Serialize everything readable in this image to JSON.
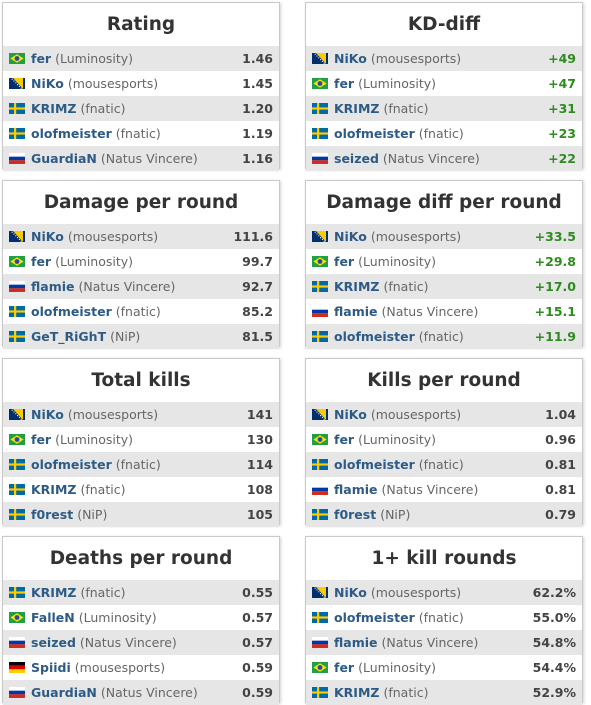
{
  "panels": [
    {
      "title": "Rating",
      "positive": false,
      "rows": [
        {
          "flag": "brazil",
          "player": "fer",
          "team": "(Luminosity)",
          "value": "1.46"
        },
        {
          "flag": "bosnia",
          "player": "NiKo",
          "team": "(mousesports)",
          "value": "1.45"
        },
        {
          "flag": "sweden",
          "player": "KRIMZ",
          "team": "(fnatic)",
          "value": "1.20"
        },
        {
          "flag": "sweden",
          "player": "olofmeister",
          "team": "(fnatic)",
          "value": "1.19"
        },
        {
          "flag": "russia",
          "player": "GuardiaN",
          "team": "(Natus Vincere)",
          "value": "1.16"
        }
      ]
    },
    {
      "title": "KD-diff",
      "positive": true,
      "rows": [
        {
          "flag": "bosnia",
          "player": "NiKo",
          "team": "(mousesports)",
          "value": "+49"
        },
        {
          "flag": "brazil",
          "player": "fer",
          "team": "(Luminosity)",
          "value": "+47"
        },
        {
          "flag": "sweden",
          "player": "KRIMZ",
          "team": "(fnatic)",
          "value": "+31"
        },
        {
          "flag": "sweden",
          "player": "olofmeister",
          "team": "(fnatic)",
          "value": "+23"
        },
        {
          "flag": "russia",
          "player": "seized",
          "team": "(Natus Vincere)",
          "value": "+22"
        }
      ]
    },
    {
      "title": "Damage per round",
      "positive": false,
      "rows": [
        {
          "flag": "bosnia",
          "player": "NiKo",
          "team": "(mousesports)",
          "value": "111.6"
        },
        {
          "flag": "brazil",
          "player": "fer",
          "team": "(Luminosity)",
          "value": "99.7"
        },
        {
          "flag": "russia",
          "player": "flamie",
          "team": "(Natus Vincere)",
          "value": "92.7"
        },
        {
          "flag": "sweden",
          "player": "olofmeister",
          "team": "(fnatic)",
          "value": "85.2"
        },
        {
          "flag": "sweden",
          "player": "GeT_RiGhT",
          "team": "(NiP)",
          "value": "81.5"
        }
      ]
    },
    {
      "title": "Damage diff per round",
      "positive": true,
      "rows": [
        {
          "flag": "bosnia",
          "player": "NiKo",
          "team": "(mousesports)",
          "value": "+33.5"
        },
        {
          "flag": "brazil",
          "player": "fer",
          "team": "(Luminosity)",
          "value": "+29.8"
        },
        {
          "flag": "sweden",
          "player": "KRIMZ",
          "team": "(fnatic)",
          "value": "+17.0"
        },
        {
          "flag": "russia",
          "player": "flamie",
          "team": "(Natus Vincere)",
          "value": "+15.1"
        },
        {
          "flag": "sweden",
          "player": "olofmeister",
          "team": "(fnatic)",
          "value": "+11.9"
        }
      ]
    },
    {
      "title": "Total kills",
      "positive": false,
      "rows": [
        {
          "flag": "bosnia",
          "player": "NiKo",
          "team": "(mousesports)",
          "value": "141"
        },
        {
          "flag": "brazil",
          "player": "fer",
          "team": "(Luminosity)",
          "value": "130"
        },
        {
          "flag": "sweden",
          "player": "olofmeister",
          "team": "(fnatic)",
          "value": "114"
        },
        {
          "flag": "sweden",
          "player": "KRIMZ",
          "team": "(fnatic)",
          "value": "108"
        },
        {
          "flag": "sweden",
          "player": "f0rest",
          "team": "(NiP)",
          "value": "105"
        }
      ]
    },
    {
      "title": "Kills per round",
      "positive": false,
      "rows": [
        {
          "flag": "bosnia",
          "player": "NiKo",
          "team": "(mousesports)",
          "value": "1.04"
        },
        {
          "flag": "brazil",
          "player": "fer",
          "team": "(Luminosity)",
          "value": "0.96"
        },
        {
          "flag": "sweden",
          "player": "olofmeister",
          "team": "(fnatic)",
          "value": "0.81"
        },
        {
          "flag": "russia",
          "player": "flamie",
          "team": "(Natus Vincere)",
          "value": "0.81"
        },
        {
          "flag": "sweden",
          "player": "f0rest",
          "team": "(NiP)",
          "value": "0.79"
        }
      ]
    },
    {
      "title": "Deaths per round",
      "positive": false,
      "rows": [
        {
          "flag": "sweden",
          "player": "KRIMZ",
          "team": "(fnatic)",
          "value": "0.55"
        },
        {
          "flag": "brazil",
          "player": "FalleN",
          "team": "(Luminosity)",
          "value": "0.57"
        },
        {
          "flag": "russia",
          "player": "seized",
          "team": "(Natus Vincere)",
          "value": "0.57"
        },
        {
          "flag": "germany",
          "player": "Spiidi",
          "team": "(mousesports)",
          "value": "0.59"
        },
        {
          "flag": "russia",
          "player": "GuardiaN",
          "team": "(Natus Vincere)",
          "value": "0.59"
        }
      ]
    },
    {
      "title": "1+ kill rounds",
      "positive": false,
      "rows": [
        {
          "flag": "bosnia",
          "player": "NiKo",
          "team": "(mousesports)",
          "value": "62.2%"
        },
        {
          "flag": "sweden",
          "player": "olofmeister",
          "team": "(fnatic)",
          "value": "55.0%"
        },
        {
          "flag": "russia",
          "player": "flamie",
          "team": "(Natus Vincere)",
          "value": "54.8%"
        },
        {
          "flag": "brazil",
          "player": "fer",
          "team": "(Luminosity)",
          "value": "54.4%"
        },
        {
          "flag": "sweden",
          "player": "KRIMZ",
          "team": "(fnatic)",
          "value": "52.9%"
        }
      ]
    }
  ]
}
